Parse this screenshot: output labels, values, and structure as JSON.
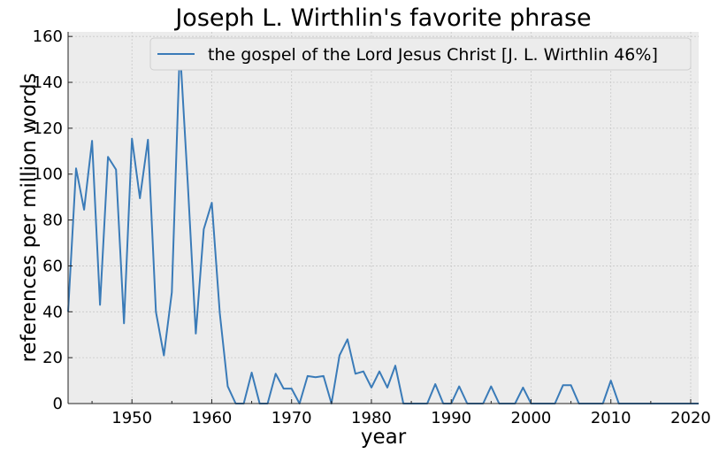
{
  "chart_data": {
    "type": "line",
    "title": "Joseph L. Wirthlin's favorite phrase",
    "xlabel": "year",
    "ylabel": "references per million words",
    "xlim": [
      1942,
      2021
    ],
    "ylim": [
      0,
      162
    ],
    "x_ticks": [
      1950,
      1960,
      1970,
      1980,
      1990,
      2000,
      2010,
      2020
    ],
    "y_ticks": [
      0,
      20,
      40,
      60,
      80,
      100,
      120,
      140,
      160
    ],
    "grid": true,
    "legend_position": "top-right",
    "colors": {
      "line": "#3a7bb8",
      "plot_bg": "#ececec",
      "grid": "#c8c8c8"
    },
    "series": [
      {
        "name": "the gospel of the Lord Jesus Christ [J. L. Wirthlin 46%]",
        "x": [
          1942,
          1943,
          1944,
          1945,
          1946,
          1947,
          1948,
          1949,
          1950,
          1951,
          1952,
          1953,
          1954,
          1955,
          1956,
          1957,
          1958,
          1959,
          1960,
          1961,
          1962,
          1963,
          1964,
          1965,
          1966,
          1967,
          1968,
          1969,
          1970,
          1971,
          1972,
          1973,
          1974,
          1975,
          1976,
          1977,
          1978,
          1979,
          1980,
          1981,
          1982,
          1983,
          1984,
          1985,
          1986,
          1987,
          1988,
          1989,
          1990,
          1991,
          1992,
          1993,
          1994,
          1995,
          1996,
          1997,
          1998,
          1999,
          2000,
          2001,
          2002,
          2003,
          2004,
          2005,
          2006,
          2007,
          2008,
          2009,
          2010,
          2011,
          2012,
          2013,
          2014,
          2015,
          2016,
          2017,
          2018,
          2019,
          2020,
          2021
        ],
        "values": [
          40,
          102.5,
          84.5,
          114.5,
          43,
          107.5,
          102,
          35,
          115.5,
          89.5,
          115,
          40,
          21,
          48.5,
          155.5,
          95.5,
          30.5,
          76,
          87.5,
          39.5,
          7.5,
          0,
          0,
          13.5,
          0,
          0,
          13,
          6.5,
          6.5,
          0,
          12,
          11.5,
          12,
          0,
          21,
          28,
          13,
          14,
          7,
          14,
          7,
          16.5,
          0,
          0,
          0,
          0,
          8.5,
          0,
          0,
          7.5,
          0,
          0,
          0,
          7.5,
          0,
          0,
          0,
          7,
          0,
          0,
          0,
          0,
          8,
          8,
          0,
          0,
          0,
          0,
          10,
          0,
          0,
          0,
          0,
          0,
          0,
          0,
          0,
          0,
          0,
          0
        ]
      }
    ]
  }
}
